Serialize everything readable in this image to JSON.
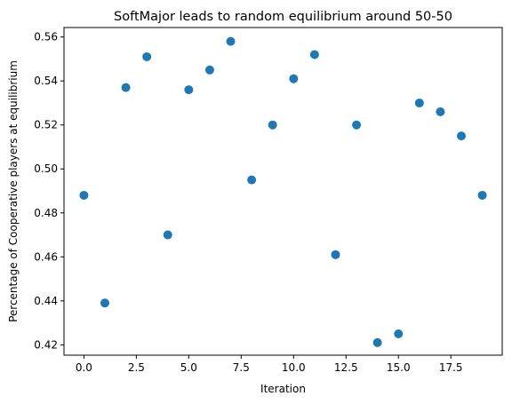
{
  "chart_data": {
    "type": "scatter",
    "title": "SoftMajor leads to random equilibrium around 50-50",
    "xlabel": "Iteration",
    "ylabel": "Percentage of Cooperative players at equilibrium",
    "xlim": [
      -0.95,
      19.95
    ],
    "ylim": [
      0.4153,
      0.5643
    ],
    "xticks": [
      0.0,
      2.5,
      5.0,
      7.5,
      10.0,
      12.5,
      15.0,
      17.5
    ],
    "xtick_labels": [
      "0.0",
      "2.5",
      "5.0",
      "7.5",
      "10.0",
      "12.5",
      "15.0",
      "17.5"
    ],
    "yticks": [
      0.42,
      0.44,
      0.46,
      0.48,
      0.5,
      0.52,
      0.54,
      0.56
    ],
    "ytick_labels": [
      "0.42",
      "0.44",
      "0.46",
      "0.48",
      "0.50",
      "0.52",
      "0.54",
      "0.56"
    ],
    "grid": false,
    "legend": "none",
    "marker_color": "#1f77b4",
    "x": [
      0,
      1,
      2,
      3,
      4,
      5,
      6,
      7,
      8,
      9,
      10,
      11,
      12,
      13,
      14,
      15,
      16,
      17,
      18,
      19
    ],
    "y": [
      0.488,
      0.439,
      0.537,
      0.551,
      0.47,
      0.536,
      0.545,
      0.558,
      0.495,
      0.52,
      0.541,
      0.552,
      0.461,
      0.52,
      0.421,
      0.425,
      0.53,
      0.526,
      0.515,
      0.488
    ]
  }
}
